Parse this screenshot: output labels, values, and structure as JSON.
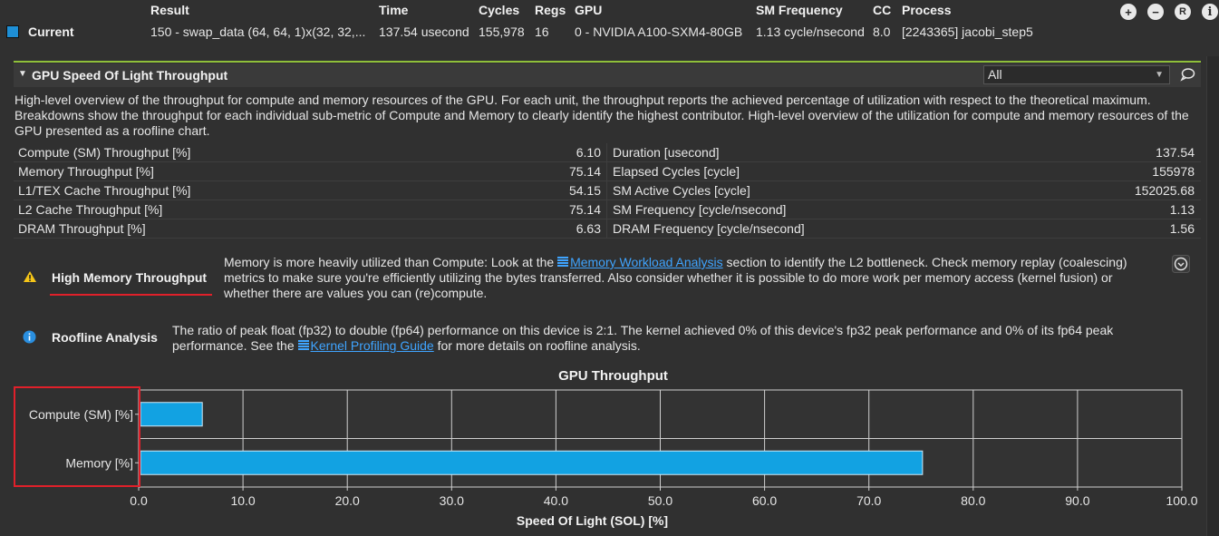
{
  "results_header": {
    "columns": {
      "result": "Result",
      "time": "Time",
      "cycles": "Cycles",
      "regs": "Regs",
      "gpu": "GPU",
      "sm_frequency": "SM Frequency",
      "cc": "CC",
      "process": "Process"
    },
    "current_row": {
      "label": "Current",
      "swatch_color": "#1e8fd6",
      "result": "150 - swap_data (64, 64, 1)x(32, 32,...",
      "time": "137.54 usecond",
      "cycles": "155,978",
      "regs": "16",
      "gpu": "0 - NVIDIA A100-SXM4-80GB",
      "sm_frequency": "1.13 cycle/nsecond",
      "cc": "8.0",
      "process": "[2243365] jacobi_step5"
    },
    "toolbar": {
      "add": "+",
      "remove": "−",
      "reset": "R",
      "info": "i"
    }
  },
  "section": {
    "title": "GPU Speed Of Light Throughput",
    "filter_value": "All",
    "description": "High-level overview of the throughput for compute and memory resources of the GPU. For each unit, the throughput reports the achieved percentage of utilization with respect to the theoretical maximum. Breakdowns show the throughput for each individual sub-metric of Compute and Memory to clearly identify the highest contributor. High-level overview of the utilization for compute and memory resources of the GPU presented as a roofline chart."
  },
  "metrics": {
    "left": [
      {
        "name": "Compute (SM) Throughput [%]",
        "value": "6.10"
      },
      {
        "name": "Memory Throughput [%]",
        "value": "75.14"
      },
      {
        "name": "L1/TEX Cache Throughput [%]",
        "value": "54.15"
      },
      {
        "name": "L2 Cache Throughput [%]",
        "value": "75.14"
      },
      {
        "name": "DRAM Throughput [%]",
        "value": "6.63"
      }
    ],
    "right": [
      {
        "name": "Duration [usecond]",
        "value": "137.54"
      },
      {
        "name": "Elapsed Cycles [cycle]",
        "value": "155978"
      },
      {
        "name": "SM Active Cycles [cycle]",
        "value": "152025.68"
      },
      {
        "name": "SM Frequency [cycle/nsecond]",
        "value": "1.13"
      },
      {
        "name": "DRAM Frequency [cycle/nsecond]",
        "value": "1.56"
      }
    ]
  },
  "rules": {
    "memory": {
      "title": "High Memory Throughput",
      "text_before_link": "Memory is more heavily utilized than Compute: Look at the ",
      "link": "Memory Workload Analysis",
      "text_after_link": " section to identify the L2 bottleneck. Check memory replay (coalescing)",
      "line2": "metrics to make sure you're efficiently utilizing the bytes transferred. Also consider whether it is possible to do more work per memory access (kernel fusion) or",
      "line3": "whether there are values you can (re)compute."
    },
    "roofline": {
      "title": "Roofline Analysis",
      "line1": "The ratio of peak float (fp32) to double (fp64) performance on this device is 2:1. The kernel achieved 0% of this device's fp32 peak performance and 0% of its fp64 peak",
      "line2_before_link": "performance. See the ",
      "link": "Kernel Profiling Guide",
      "line2_after_link": " for more details on roofline analysis."
    }
  },
  "chart_data": {
    "type": "bar",
    "orientation": "horizontal",
    "title": "GPU Throughput",
    "xlabel": "Speed Of Light (SOL) [%]",
    "ylabel": "",
    "categories": [
      "Compute (SM) [%]",
      "Memory [%]"
    ],
    "values": [
      6.1,
      75.14
    ],
    "xlim": [
      0,
      100
    ],
    "xticks": [
      "0.0",
      "10.0",
      "20.0",
      "30.0",
      "40.0",
      "50.0",
      "60.0",
      "70.0",
      "80.0",
      "90.0",
      "100.0"
    ],
    "bar_color": "#12a2e2",
    "grid": true
  }
}
